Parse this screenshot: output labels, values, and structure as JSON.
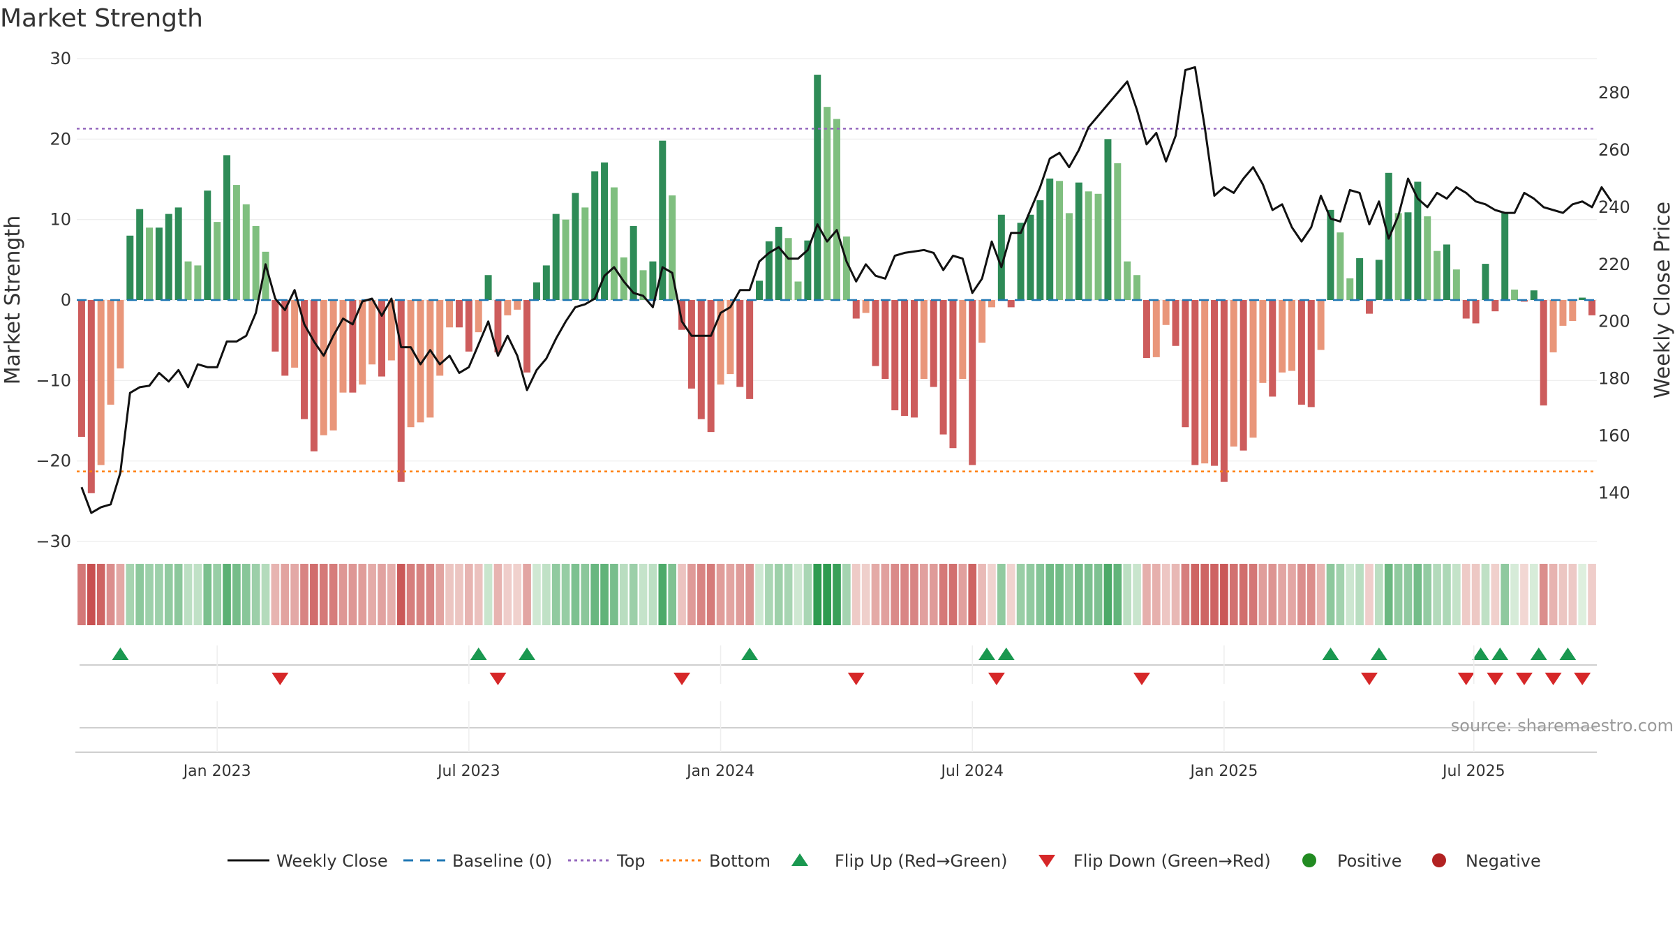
{
  "chart_data": {
    "type": "bar",
    "title": "Market Strength",
    "left_axis": {
      "label": "Market Strength",
      "range": [
        -30,
        30
      ],
      "ticks": [
        "30",
        "20",
        "10",
        "0",
        "−10",
        "−20",
        "−30"
      ],
      "tick_values": [
        30,
        20,
        10,
        0,
        -10,
        -20,
        -30
      ]
    },
    "right_axis": {
      "label": "Weekly Close Price",
      "range": [
        123,
        292
      ],
      "ticks": [
        "280",
        "260",
        "240",
        "220",
        "200",
        "180",
        "160",
        "140"
      ],
      "tick_values": [
        280,
        260,
        240,
        220,
        200,
        180,
        160,
        140
      ]
    },
    "top_line": 21.3,
    "bottom_line": -21.3,
    "x_labels": [
      "Jan 2023",
      "Jul 2023",
      "Jan 2024",
      "Jul 2024",
      "Jan 2025",
      "Jul 2025"
    ],
    "x_label_weeks": [
      14.5,
      40.5,
      66.5,
      92.5,
      118.5,
      144.3
    ],
    "strength": [
      -17,
      -24,
      -20.5,
      -13,
      -8.5,
      8,
      11.3,
      9,
      9,
      10.7,
      11.5,
      4.8,
      4.3,
      13.6,
      9.7,
      18,
      14.3,
      11.9,
      9.2,
      6,
      -6.4,
      -9.4,
      -8.4,
      -14.8,
      -18.8,
      -16.8,
      -16.2,
      -11.5,
      -11.5,
      -10.5,
      -8,
      -9.5,
      -7.5,
      -22.6,
      -15.8,
      -15.2,
      -14.6,
      -9.4,
      -3.4,
      -3.4,
      -6.4,
      -4,
      3.1,
      -6.5,
      -1.9,
      -1.2,
      -9,
      2.2,
      4.3,
      10.7,
      10,
      13.3,
      11.5,
      16,
      17.1,
      14,
      5.3,
      9.2,
      3.7,
      4.8,
      19.8,
      13,
      -3.7,
      -11,
      -14.8,
      -16.4,
      -10.5,
      -9.2,
      -10.8,
      -12.3,
      2.4,
      7.3,
      9.1,
      7.7,
      2.3,
      7.4,
      28,
      24,
      22.5,
      7.9,
      -2.3,
      -1.6,
      -8.2,
      -9.8,
      -13.7,
      -14.4,
      -14.6,
      -9.8,
      -10.8,
      -16.7,
      -18.4,
      -9.8,
      -20.5,
      -5.3,
      -0.9,
      10.6,
      -0.9,
      9.6,
      10.6,
      12.4,
      15.1,
      14.8,
      10.8,
      14.6,
      13.5,
      13.2,
      20,
      17,
      4.8,
      3.1,
      -7.2,
      -7.1,
      -3.1,
      -5.7,
      -15.8,
      -20.5,
      -20.3,
      -20.6,
      -22.6,
      -18.2,
      -18.7,
      -17.1,
      -10.3,
      -12,
      -9,
      -8.8,
      -13,
      -13.3,
      -6.2,
      11.2,
      8.4,
      2.7,
      5.2,
      -1.7,
      5,
      15.8,
      10.8,
      10.9,
      14.7,
      10.4,
      6.1,
      6.9,
      3.8,
      -2.3,
      -2.9,
      4.5,
      -1.4,
      10.9,
      1.3,
      -0.2,
      1.2,
      -13.1,
      -6.5,
      -3.2,
      -2.6,
      0.3,
      -1.9
    ],
    "weekly_close": [
      142,
      133,
      135,
      136,
      147,
      175,
      177,
      177.5,
      182,
      179,
      183,
      177,
      185,
      184,
      184,
      193,
      193,
      195,
      203,
      220,
      208,
      204,
      211,
      199,
      193,
      188,
      195,
      201,
      199,
      207,
      208,
      202,
      208,
      191,
      191,
      185,
      190,
      185,
      188,
      182,
      184,
      192,
      200,
      188,
      195,
      188,
      176,
      183,
      187,
      194,
      200,
      205,
      206,
      208,
      216,
      219,
      214,
      210,
      209,
      205,
      219,
      217,
      200,
      195,
      195,
      195,
      203,
      205,
      211,
      211,
      221,
      224,
      226,
      222,
      222,
      225,
      234,
      228,
      232,
      221,
      214,
      220,
      216,
      215,
      223,
      224,
      224.5,
      225,
      224,
      218,
      223,
      222,
      210,
      215,
      228,
      219,
      231,
      231,
      239,
      247,
      257,
      259,
      254,
      260,
      268,
      272,
      276,
      280,
      284,
      274,
      262,
      266,
      256,
      265,
      288,
      289,
      268,
      244,
      247,
      245,
      250,
      254,
      248,
      239,
      241,
      233,
      228,
      233,
      244,
      236,
      235,
      246,
      245,
      234,
      242,
      229,
      237,
      250,
      243,
      240,
      245,
      243,
      247,
      245,
      242,
      241,
      239,
      238,
      238,
      245,
      243,
      240,
      239,
      238,
      241,
      242,
      240,
      247,
      242
    ],
    "flip_up_weeks": [
      4.5,
      41.5,
      46.5,
      69.5,
      94,
      96,
      129.5,
      134.5,
      145,
      147,
      151,
      154
    ],
    "flip_down_weeks": [
      21,
      43.5,
      62.5,
      80.5,
      95,
      110,
      133.5,
      143.5,
      146.5,
      149.5,
      152.5,
      155.5
    ],
    "legend": [
      "Weekly Close",
      "Baseline (0)",
      "Top",
      "Bottom",
      "Flip Up (Red→Green)",
      "Flip Down (Green→Red)",
      "Positive",
      "Negative"
    ]
  },
  "source": "source: sharemaestro.com",
  "colors": {
    "pos_strong": "#2e8b57",
    "pos_light": "#7fbf7f",
    "neg_strong": "#cd5c5c",
    "neg_light": "#e9967a",
    "line": "#111111",
    "baseline": "#1f77b4",
    "top": "#9467bd",
    "bottom": "#ff7f0e",
    "flip_up": "#1a9850",
    "flip_down": "#d62728",
    "positive": "#228b22",
    "negative": "#b22222"
  }
}
